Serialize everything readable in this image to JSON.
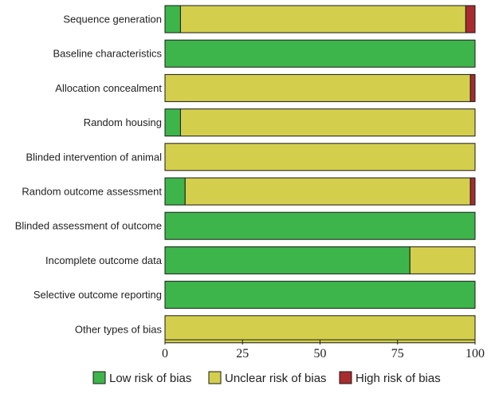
{
  "chart_data": {
    "type": "bar",
    "orientation": "horizontal",
    "stacked": true,
    "categories": [
      "Sequence generation",
      "Baseline characteristics",
      "Allocation concealment",
      "Random housing",
      "Blinded intervention of animal",
      "Random outcome assessment",
      "Blinded assessment of outcome",
      "Incomplete outcome data",
      "Selective outcome reporting",
      "Other types of bias"
    ],
    "series": [
      {
        "name": "Low risk of bias",
        "color": "#3db54a",
        "values": [
          5,
          100,
          0,
          5,
          0,
          6.5,
          100,
          79,
          100,
          0
        ]
      },
      {
        "name": "Unclear risk of bias",
        "color": "#d3cf4c",
        "values": [
          92,
          0,
          98.5,
          95,
          100,
          92,
          0,
          21,
          0,
          100
        ]
      },
      {
        "name": "High risk of bias",
        "color": "#a92b2f",
        "values": [
          3,
          0,
          1.5,
          0,
          0,
          1.5,
          0,
          0,
          0,
          0
        ]
      }
    ],
    "xlim": [
      0,
      100
    ],
    "xticks": [
      "0",
      "25",
      "50",
      "75",
      "100"
    ],
    "xlabel": "",
    "ylabel": "",
    "title": "",
    "grid": false,
    "legend_position": "bottom"
  }
}
